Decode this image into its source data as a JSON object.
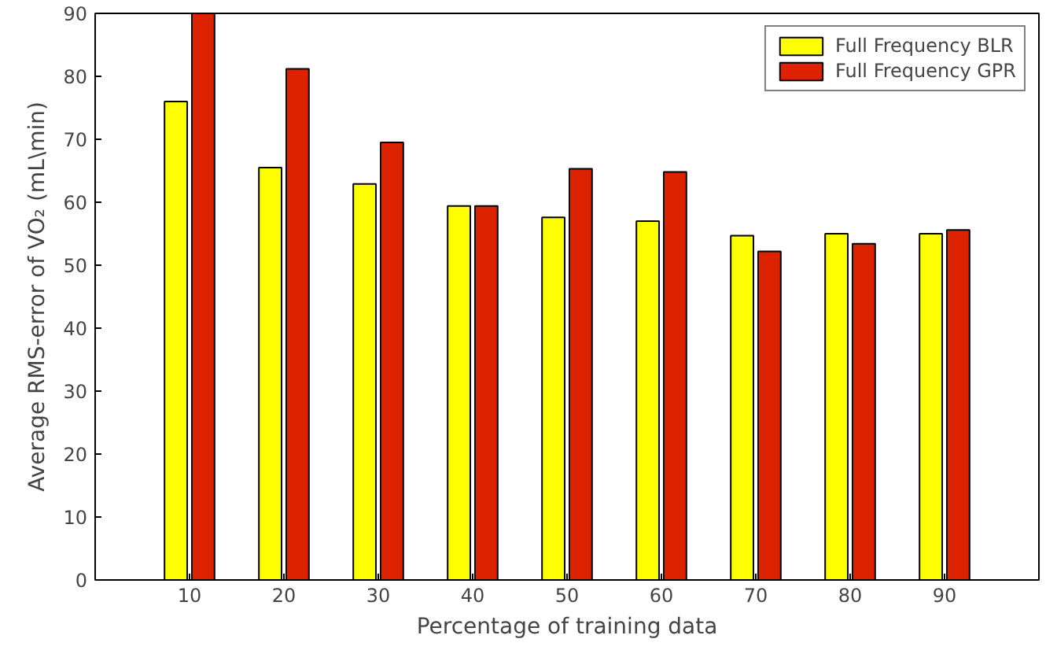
{
  "chart_data": {
    "type": "bar",
    "xlabel": "Percentage of training data",
    "ylabel": "Average RMS-error of VO₂ (mL\\min)",
    "x": [
      10,
      20,
      30,
      40,
      50,
      60,
      70,
      80,
      90
    ],
    "xlim": [
      0,
      100
    ],
    "xticks": [
      10,
      20,
      30,
      40,
      50,
      60,
      70,
      80,
      90
    ],
    "ylim": [
      0,
      90
    ],
    "yticks": [
      0,
      10,
      20,
      30,
      40,
      50,
      60,
      70,
      80,
      90
    ],
    "series": [
      {
        "name": "Full Frequency BLR",
        "color": "#ffff00",
        "values": [
          76.0,
          65.5,
          62.9,
          59.4,
          57.6,
          57.0,
          54.7,
          55.0,
          55.0
        ]
      },
      {
        "name": "Full Frequency GPR",
        "color": "#dd2200",
        "values": [
          90.0,
          81.2,
          69.5,
          59.4,
          65.3,
          64.8,
          52.2,
          53.4,
          55.6
        ]
      }
    ],
    "grid": false,
    "legend": "top right"
  }
}
